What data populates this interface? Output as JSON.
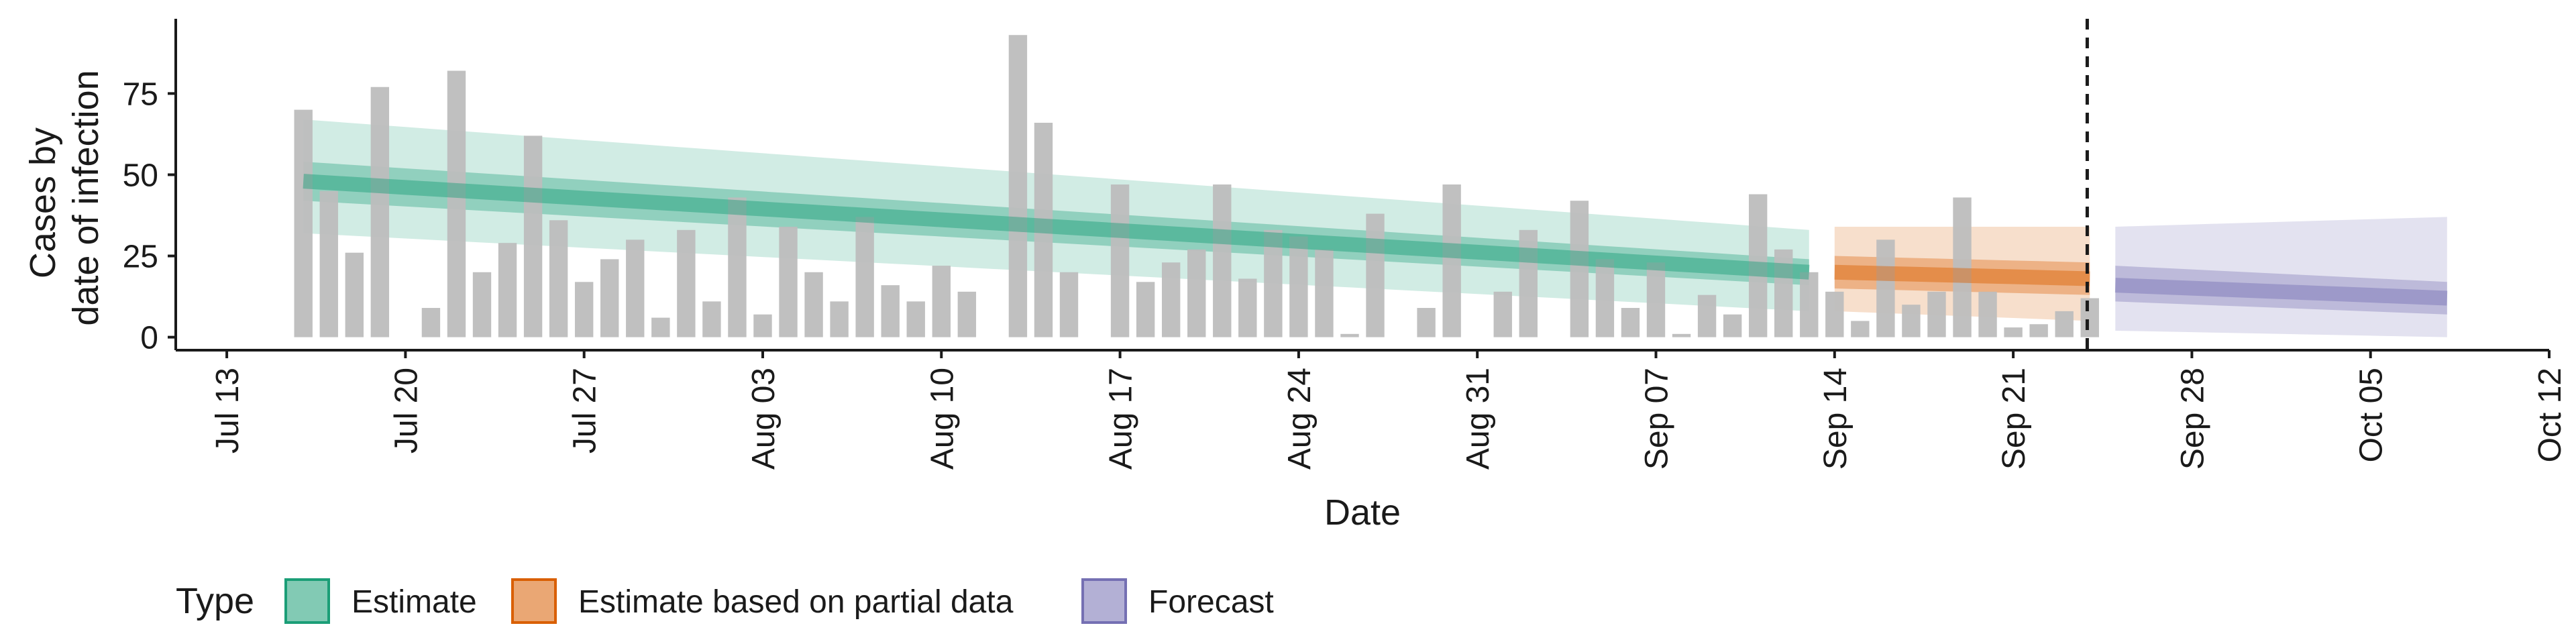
{
  "chart_data": {
    "type": "bar",
    "title": "",
    "xlabel": "Date",
    "ylabel_lines": [
      "Cases by",
      "date of infection"
    ],
    "x_range": [
      "2020-07-11",
      "2020-10-12"
    ],
    "y_range": [
      -4,
      98
    ],
    "y_ticks": [
      0,
      25,
      50,
      75
    ],
    "x_ticks": [
      {
        "date": "2020-07-13",
        "label": "Jul 13"
      },
      {
        "date": "2020-07-20",
        "label": "Jul 20"
      },
      {
        "date": "2020-07-27",
        "label": "Jul 27"
      },
      {
        "date": "2020-08-03",
        "label": "Aug 03"
      },
      {
        "date": "2020-08-10",
        "label": "Aug 10"
      },
      {
        "date": "2020-08-17",
        "label": "Aug 17"
      },
      {
        "date": "2020-08-24",
        "label": "Aug 24"
      },
      {
        "date": "2020-08-31",
        "label": "Aug 31"
      },
      {
        "date": "2020-09-07",
        "label": "Sep 07"
      },
      {
        "date": "2020-09-14",
        "label": "Sep 14"
      },
      {
        "date": "2020-09-21",
        "label": "Sep 21"
      },
      {
        "date": "2020-09-28",
        "label": "Sep 28"
      },
      {
        "date": "2020-10-05",
        "label": "Oct 05"
      },
      {
        "date": "2020-10-12",
        "label": "Oct 12"
      }
    ],
    "reference_line_date": "2020-09-24",
    "bars": {
      "color": "#bdbdbd",
      "dates": [
        "2020-07-16",
        "2020-07-17",
        "2020-07-18",
        "2020-07-19",
        "2020-07-20",
        "2020-07-21",
        "2020-07-22",
        "2020-07-23",
        "2020-07-24",
        "2020-07-25",
        "2020-07-26",
        "2020-07-27",
        "2020-07-28",
        "2020-07-29",
        "2020-07-30",
        "2020-07-31",
        "2020-08-01",
        "2020-08-02",
        "2020-08-03",
        "2020-08-04",
        "2020-08-05",
        "2020-08-06",
        "2020-08-07",
        "2020-08-08",
        "2020-08-09",
        "2020-08-10",
        "2020-08-11",
        "2020-08-12",
        "2020-08-13",
        "2020-08-14",
        "2020-08-15",
        "2020-08-16",
        "2020-08-17",
        "2020-08-18",
        "2020-08-19",
        "2020-08-20",
        "2020-08-21",
        "2020-08-22",
        "2020-08-23",
        "2020-08-24",
        "2020-08-25",
        "2020-08-26",
        "2020-08-27",
        "2020-08-28",
        "2020-08-29",
        "2020-08-30",
        "2020-08-31",
        "2020-09-01",
        "2020-09-02",
        "2020-09-03",
        "2020-09-04",
        "2020-09-05",
        "2020-09-06",
        "2020-09-07",
        "2020-09-08",
        "2020-09-09",
        "2020-09-10",
        "2020-09-11",
        "2020-09-12",
        "2020-09-13",
        "2020-09-14",
        "2020-09-15",
        "2020-09-16",
        "2020-09-17",
        "2020-09-18",
        "2020-09-19",
        "2020-09-20",
        "2020-09-21",
        "2020-09-22",
        "2020-09-23",
        "2020-09-24"
      ],
      "values": [
        70,
        45,
        26,
        77,
        0,
        9,
        82,
        20,
        29,
        62,
        36,
        17,
        24,
        30,
        6,
        33,
        11,
        43,
        7,
        34,
        20,
        11,
        37,
        16,
        11,
        22,
        14,
        0,
        93,
        66,
        20,
        0,
        47,
        17,
        23,
        27,
        47,
        18,
        33,
        31,
        27,
        1,
        38,
        0,
        9,
        47,
        0,
        14,
        33,
        0,
        42,
        24,
        9,
        23,
        1,
        13,
        7,
        44,
        27,
        20,
        14,
        5,
        30,
        10,
        14,
        43,
        14,
        3,
        4,
        8,
        12
      ]
    },
    "series": [
      {
        "name": "Estimate",
        "color": "#1b9e77",
        "start": "2020-07-16",
        "end": "2020-09-13",
        "median": [
          48,
          20
        ],
        "inner": [
          [
            42,
            54
          ],
          [
            16,
            24
          ]
        ],
        "outer": [
          [
            32,
            67
          ],
          [
            8,
            33
          ]
        ]
      },
      {
        "name": "Estimate based on partial data",
        "color": "#d95f02",
        "start": "2020-09-14",
        "end": "2020-09-24",
        "median": [
          20,
          18
        ],
        "inner": [
          [
            15,
            25
          ],
          [
            13,
            23
          ]
        ],
        "outer": [
          [
            8,
            34
          ],
          [
            5,
            34
          ]
        ]
      },
      {
        "name": "Forecast",
        "color": "#7570b3",
        "start": "2020-09-25",
        "end": "2020-10-08",
        "median": [
          16,
          12
        ],
        "inner": [
          [
            11,
            22
          ],
          [
            7,
            17
          ]
        ],
        "outer": [
          [
            2,
            34
          ],
          [
            0,
            37
          ]
        ]
      }
    ],
    "legend": {
      "title": "Type",
      "position": "bottom",
      "items": [
        "Estimate",
        "Estimate based on partial data",
        "Forecast"
      ]
    },
    "grid": false
  }
}
